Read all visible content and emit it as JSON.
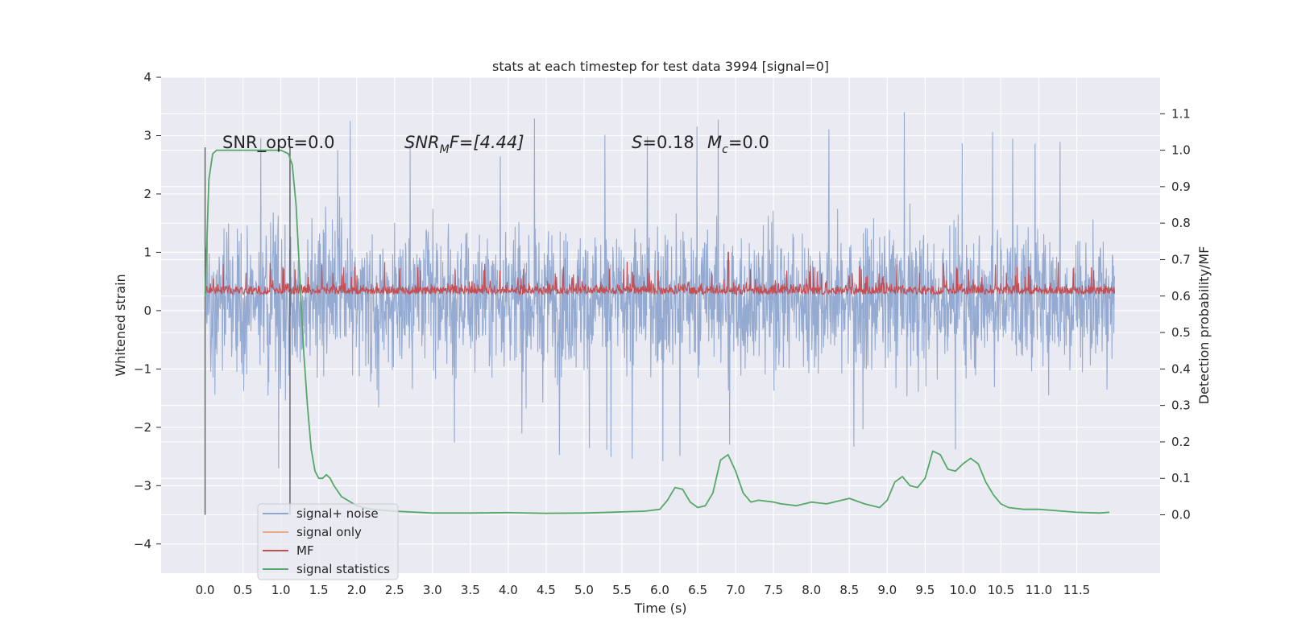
{
  "chart_data": {
    "type": "line",
    "title": "stats at each timestep for test data 3994 [signal=0]",
    "xlabel": "Time (s)",
    "ylabel": "Whitened strain",
    "y2label": "Detection probability/MF",
    "xlim": [
      -0.58,
      12.6
    ],
    "ylim": [
      -4.5,
      4
    ],
    "y2lim": [
      -0.16,
      1.2
    ],
    "grid": true,
    "legend_position": "lower-left",
    "x_ticks": [
      "0.0",
      "0.5",
      "1.0",
      "1.5",
      "2.0",
      "2.5",
      "3.0",
      "3.5",
      "4.0",
      "4.5",
      "5.0",
      "5.5",
      "6.0",
      "6.5",
      "7.0",
      "7.5",
      "8.0",
      "8.5",
      "9.0",
      "9.5",
      "10.0",
      "10.5",
      "11.0",
      "11.5"
    ],
    "y_ticks": [
      "4",
      "3",
      "2",
      "1",
      "0",
      "−1",
      "−2",
      "−3",
      "−4"
    ],
    "y2_ticks": [
      "1.1",
      "1.0",
      "0.9",
      "0.8",
      "0.7",
      "0.6",
      "0.5",
      "0.4",
      "0.3",
      "0.2",
      "0.1",
      "0.0"
    ],
    "annotations": {
      "snr_opt": "SNR_opt=0.0",
      "snr_mf_base": "SNR",
      "snr_mf_sub": "M",
      "snr_mf_rest": "F=[4.44]",
      "s_base": "S",
      "s_rest": "=0.18",
      "mc_base": "M",
      "mc_sub": "c",
      "mc_rest": "=0.0"
    },
    "vertical_lines_x": [
      0.0,
      1.12
    ],
    "series": [
      {
        "name": "signal+ noise",
        "color": "#8fa7cf",
        "description": "noise trace spanning 0–12 s",
        "envelope": {
          "x": [
            0.0,
            12.0
          ],
          "upper": [
            2.8,
            3.1
          ],
          "lower": [
            -2.4,
            -2.1
          ],
          "extreme_max": 3.6,
          "extreme_min": -4.1
        }
      },
      {
        "name": "signal only",
        "color": "#e9a98b",
        "values": []
      },
      {
        "name": "MF",
        "color": "#c44e52",
        "envelope": {
          "x": [
            0.0,
            12.0
          ],
          "upper": 0.85,
          "lower": 0.05,
          "peak_x": 6.9,
          "peak": 1.0
        }
      },
      {
        "name": "signal statistics",
        "color": "#55a868",
        "axis": "right",
        "x": [
          0.0,
          0.05,
          0.1,
          0.15,
          0.2,
          0.3,
          0.5,
          0.8,
          1.0,
          1.1,
          1.15,
          1.2,
          1.25,
          1.3,
          1.35,
          1.4,
          1.45,
          1.5,
          1.55,
          1.6,
          1.65,
          1.7,
          1.8,
          2.0,
          2.2,
          2.5,
          3.0,
          3.5,
          4.0,
          4.5,
          5.0,
          5.5,
          5.8,
          6.0,
          6.1,
          6.2,
          6.3,
          6.4,
          6.5,
          6.6,
          6.7,
          6.8,
          6.9,
          7.0,
          7.1,
          7.2,
          7.3,
          7.5,
          7.6,
          7.8,
          8.0,
          8.2,
          8.5,
          8.7,
          8.9,
          9.0,
          9.1,
          9.2,
          9.3,
          9.4,
          9.5,
          9.6,
          9.7,
          9.8,
          9.9,
          10.0,
          10.1,
          10.2,
          10.3,
          10.4,
          10.5,
          10.6,
          10.8,
          11.0,
          11.2,
          11.5,
          11.8,
          11.93
        ],
        "values": [
          0.6,
          0.92,
          0.99,
          1.0,
          1.0,
          1.0,
          1.0,
          1.0,
          1.0,
          0.99,
          0.96,
          0.85,
          0.65,
          0.45,
          0.3,
          0.18,
          0.12,
          0.1,
          0.1,
          0.11,
          0.1,
          0.08,
          0.05,
          0.025,
          0.015,
          0.01,
          0.005,
          0.005,
          0.006,
          0.004,
          0.005,
          0.008,
          0.01,
          0.015,
          0.04,
          0.075,
          0.07,
          0.035,
          0.02,
          0.025,
          0.06,
          0.15,
          0.165,
          0.12,
          0.06,
          0.035,
          0.04,
          0.035,
          0.03,
          0.025,
          0.035,
          0.03,
          0.045,
          0.03,
          0.02,
          0.04,
          0.09,
          0.105,
          0.08,
          0.075,
          0.1,
          0.175,
          0.165,
          0.125,
          0.12,
          0.14,
          0.155,
          0.14,
          0.09,
          0.055,
          0.03,
          0.02,
          0.015,
          0.015,
          0.012,
          0.007,
          0.005,
          0.007
        ]
      }
    ]
  }
}
